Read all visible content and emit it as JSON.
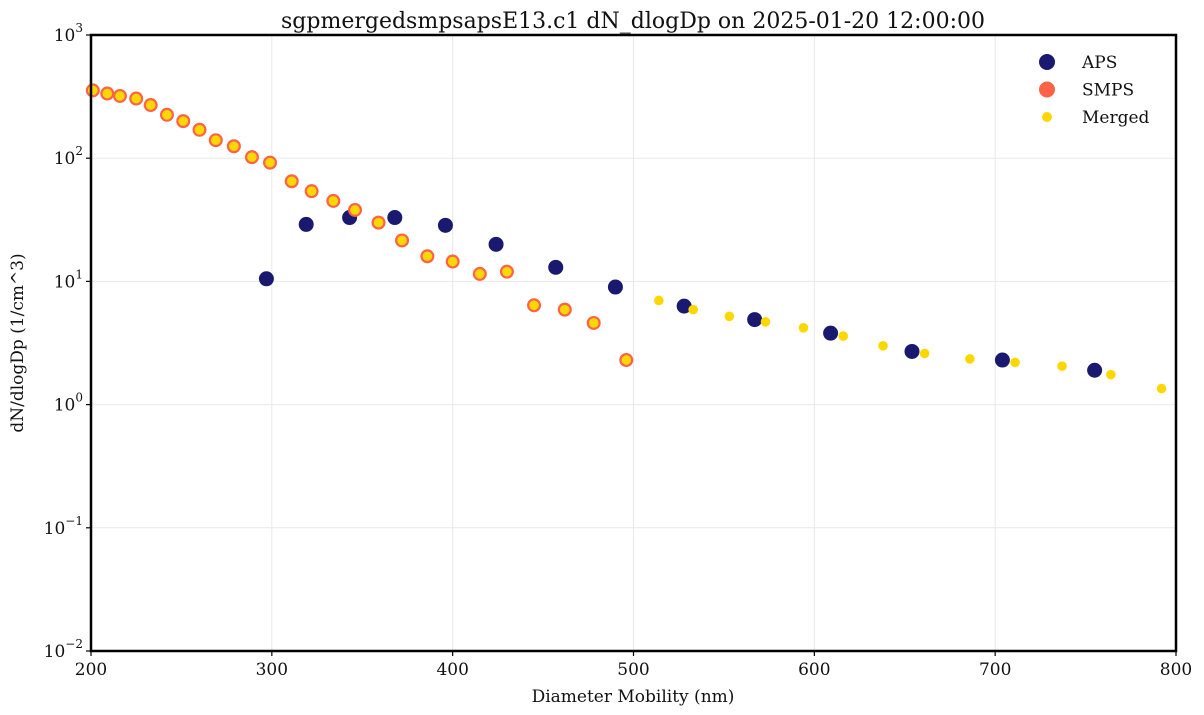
{
  "chart_data": {
    "type": "scatter",
    "title": "sgpmergedsmpsapsE13.c1 dN_dlogDp on 2025-01-20 12:00:00",
    "xlabel": "Diameter Mobility (nm)",
    "ylabel": "dN/dlogDp (1/cm^3)",
    "xlim": [
      200,
      800
    ],
    "ylim": [
      0.01,
      1000
    ],
    "yscale": "log",
    "grid": true,
    "legend_position": "top-right",
    "x_ticks": [
      "200",
      "300",
      "400",
      "500",
      "600",
      "700",
      "800"
    ],
    "y_ticks": [
      {
        "base": "10",
        "exp": "−2"
      },
      {
        "base": "10",
        "exp": "−1"
      },
      {
        "base": "10",
        "exp": "0"
      },
      {
        "base": "10",
        "exp": "1"
      },
      {
        "base": "10",
        "exp": "2"
      },
      {
        "base": "10",
        "exp": "3"
      }
    ],
    "series": [
      {
        "name": "APS",
        "color": "#191970",
        "marker": "filled-circle-large",
        "points": [
          [
            297,
            10.5
          ],
          [
            319,
            29
          ],
          [
            343,
            33
          ],
          [
            368,
            33
          ],
          [
            396,
            28.5
          ],
          [
            424,
            20
          ],
          [
            457,
            13
          ],
          [
            490,
            9
          ],
          [
            528,
            6.3
          ],
          [
            567,
            4.9
          ],
          [
            609,
            3.8
          ],
          [
            654,
            2.7
          ],
          [
            704,
            2.3
          ],
          [
            755,
            1.9
          ]
        ]
      },
      {
        "name": "SMPS",
        "color": "#ff6347",
        "marker": "ring",
        "points": [
          [
            201,
            355
          ],
          [
            209,
            335
          ],
          [
            216,
            320
          ],
          [
            225,
            305
          ],
          [
            233,
            270
          ],
          [
            242,
            225
          ],
          [
            251,
            200
          ],
          [
            260,
            170
          ],
          [
            269,
            140
          ],
          [
            279,
            125
          ],
          [
            289,
            102
          ],
          [
            299,
            92
          ],
          [
            311,
            65
          ],
          [
            322,
            54
          ],
          [
            334,
            45
          ],
          [
            346,
            38
          ],
          [
            359,
            30
          ],
          [
            372,
            21.5
          ],
          [
            386,
            16
          ],
          [
            400,
            14.5
          ],
          [
            415,
            11.5
          ],
          [
            430,
            12
          ],
          [
            445,
            6.4
          ],
          [
            462,
            5.9
          ],
          [
            478,
            4.6
          ],
          [
            496,
            2.3
          ]
        ]
      },
      {
        "name": "Merged",
        "color": "#ffd700",
        "marker": "filled-circle-small",
        "points": [
          [
            201,
            355
          ],
          [
            209,
            335
          ],
          [
            216,
            320
          ],
          [
            225,
            305
          ],
          [
            233,
            270
          ],
          [
            242,
            225
          ],
          [
            251,
            200
          ],
          [
            260,
            170
          ],
          [
            269,
            140
          ],
          [
            279,
            125
          ],
          [
            289,
            102
          ],
          [
            299,
            92
          ],
          [
            311,
            65
          ],
          [
            322,
            54
          ],
          [
            334,
            45
          ],
          [
            346,
            38
          ],
          [
            359,
            30
          ],
          [
            372,
            21.5
          ],
          [
            386,
            16
          ],
          [
            400,
            14.5
          ],
          [
            415,
            11.5
          ],
          [
            430,
            12
          ],
          [
            445,
            6.4
          ],
          [
            462,
            5.9
          ],
          [
            478,
            4.6
          ],
          [
            496,
            2.3
          ],
          [
            514,
            7
          ],
          [
            533,
            5.9
          ],
          [
            553,
            5.2
          ],
          [
            573,
            4.7
          ],
          [
            594,
            4.2
          ],
          [
            616,
            3.6
          ],
          [
            638,
            3
          ],
          [
            661,
            2.6
          ],
          [
            686,
            2.35
          ],
          [
            711,
            2.2
          ],
          [
            737,
            2.05
          ],
          [
            764,
            1.75
          ],
          [
            792,
            1.35
          ]
        ]
      }
    ]
  }
}
